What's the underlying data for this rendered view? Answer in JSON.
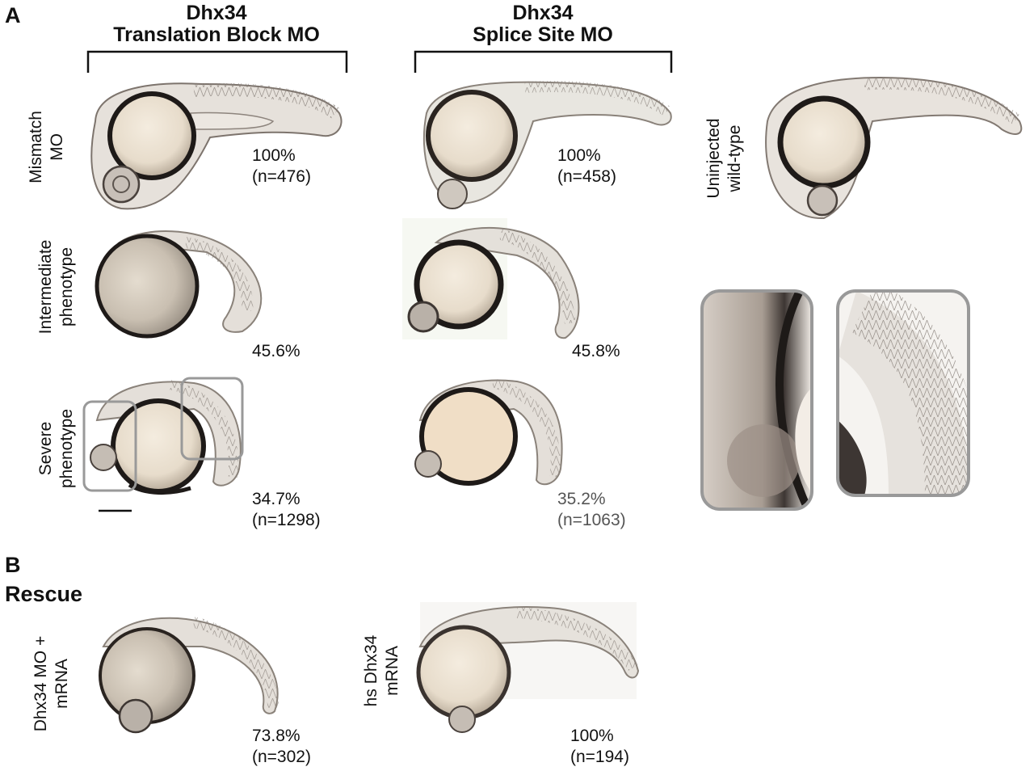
{
  "panels": {
    "a": "A",
    "b": "B"
  },
  "rescue_title": "Rescue",
  "columns": {
    "tb": {
      "line1": "Dhx34",
      "line2": "Translation Block MO"
    },
    "ss": {
      "line1": "Dhx34",
      "line2": "Splice Site MO"
    }
  },
  "row_labels": {
    "mismatch": {
      "line1": "Mismatch",
      "line2": "MO"
    },
    "intermediate": {
      "line1": "Intermediate",
      "line2": "phenotype"
    },
    "severe": {
      "line1": "Severe",
      "line2": "phenotype"
    },
    "uninjected": {
      "line1": "Uninjected",
      "line2": "wild-type"
    },
    "rescue_mo": {
      "line1": "Dhx34 MO +",
      "line2": "mRNA"
    },
    "rescue_hs": {
      "line1": "hs Dhx34",
      "line2": "mRNA"
    }
  },
  "stats": {
    "tb_mismatch": {
      "pct": "100%",
      "n": "(n=476)"
    },
    "ss_mismatch": {
      "pct": "100%",
      "n": "(n=458)"
    },
    "tb_intermediate": {
      "pct": "45.6%"
    },
    "ss_intermediate": {
      "pct": "45.8%"
    },
    "tb_severe": {
      "pct": "34.7%",
      "n": "(n=1298)"
    },
    "ss_severe": {
      "pct": "35.2%",
      "n": "(n=1063)"
    },
    "rescue_mo": {
      "pct": "73.8%",
      "n": "(n=302)"
    },
    "rescue_hs": {
      "pct": "100%",
      "n": "(n=194)"
    }
  },
  "colors": {
    "yolk": "#efe6d6",
    "body": "#d9d3cb",
    "outline": "#2a2624",
    "inset_border": "#999999"
  }
}
